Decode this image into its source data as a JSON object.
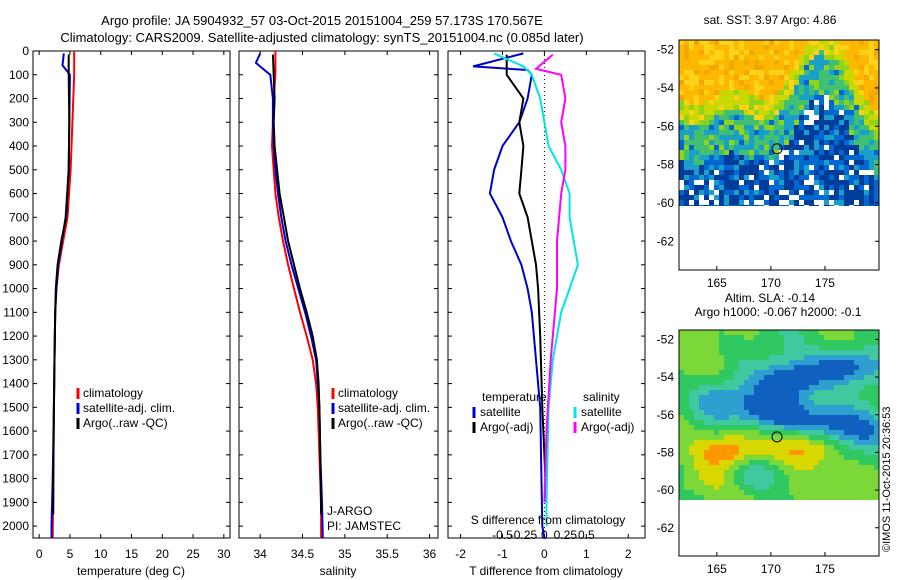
{
  "header": {
    "line1": "Argo profile: JA 5904932_57 03-Oct-2015 20151004_259 57.173S 170.567E",
    "line2": "Climatology: CARS2009. Satellite-adjusted climatology: synTS_20151004.nc (0.085d later)"
  },
  "watermark": "©IMOS 11-Oct-2015 20:36:53",
  "colors": {
    "climatology": "#ff0000",
    "satellite": "#0000cc",
    "argo": "#000000",
    "salinity_sat": "#00e5e5",
    "salinity_argo": "#ff00ff"
  },
  "chart_data": [
    {
      "id": "temperature",
      "type": "line",
      "xlabel": "temperature (deg C)",
      "xlim": [
        -1,
        31
      ],
      "xticks": [
        "0",
        "5",
        "10",
        "15",
        "20",
        "25",
        "30"
      ],
      "ylim": [
        2050,
        0
      ],
      "yticks": [
        "0",
        "100",
        "200",
        "300",
        "400",
        "500",
        "600",
        "700",
        "800",
        "900",
        "1000",
        "1100",
        "1200",
        "1300",
        "1400",
        "1500",
        "1600",
        "1700",
        "1800",
        "1900",
        "2000"
      ],
      "legend": [
        "climatology",
        "satellite-adj. clim.",
        "Argo(..raw -QC)"
      ],
      "series": [
        {
          "name": "climatology",
          "color": "#ff0000",
          "points": [
            [
              5.7,
              0
            ],
            [
              5.7,
              100
            ],
            [
              5.4,
              300
            ],
            [
              5.1,
              500
            ],
            [
              4.6,
              700
            ],
            [
              3.9,
              800
            ],
            [
              3.2,
              900
            ],
            [
              2.8,
              1000
            ],
            [
              2.6,
              1100
            ],
            [
              2.5,
              1300
            ],
            [
              2.4,
              1500
            ],
            [
              2.3,
              1800
            ],
            [
              2.2,
              2050
            ]
          ]
        },
        {
          "name": "satellite-adj. clim.",
          "color": "#0000cc",
          "points": [
            [
              4.0,
              10
            ],
            [
              3.8,
              60
            ],
            [
              4.4,
              80
            ],
            [
              5.0,
              100
            ],
            [
              4.9,
              300
            ],
            [
              4.8,
              500
            ],
            [
              4.3,
              700
            ],
            [
              3.7,
              800
            ],
            [
              3.1,
              900
            ],
            [
              2.8,
              1000
            ],
            [
              2.6,
              1100
            ],
            [
              2.5,
              1300
            ],
            [
              2.4,
              1500
            ],
            [
              2.2,
              1800
            ],
            [
              2.0,
              2000
            ],
            [
              2.0,
              2050
            ]
          ]
        },
        {
          "name": "Argo(..raw -QC)",
          "color": "#000000",
          "points": [
            [
              4.8,
              15
            ],
            [
              4.8,
              100
            ],
            [
              4.9,
              300
            ],
            [
              4.8,
              500
            ],
            [
              4.4,
              700
            ],
            [
              3.6,
              800
            ],
            [
              3.0,
              900
            ],
            [
              2.7,
              1000
            ],
            [
              2.6,
              1100
            ],
            [
              2.5,
              1300
            ],
            [
              2.4,
              1500
            ],
            [
              2.3,
              1800
            ],
            [
              2.3,
              1950
            ]
          ]
        }
      ]
    },
    {
      "id": "salinity",
      "type": "line",
      "xlabel": "salinity",
      "xlim": [
        33.75,
        36.1
      ],
      "xticks": [
        "34",
        "34.5",
        "35",
        "35.5",
        "36"
      ],
      "ylim": [
        2050,
        0
      ],
      "legend": [
        "climatology",
        "satellite-adj. clim.",
        "Argo(..raw -QC)"
      ],
      "annotations": [
        "J-ARGO",
        "PI: JAMSTEC"
      ],
      "series": [
        {
          "name": "climatology",
          "color": "#ff0000",
          "points": [
            [
              34.18,
              0
            ],
            [
              34.18,
              100
            ],
            [
              34.16,
              200
            ],
            [
              34.15,
              300
            ],
            [
              34.14,
              400
            ],
            [
              34.16,
              500
            ],
            [
              34.18,
              600
            ],
            [
              34.22,
              700
            ],
            [
              34.27,
              800
            ],
            [
              34.33,
              900
            ],
            [
              34.4,
              1000
            ],
            [
              34.47,
              1100
            ],
            [
              34.55,
              1200
            ],
            [
              34.62,
              1300
            ],
            [
              34.66,
              1400
            ],
            [
              34.68,
              1500
            ],
            [
              34.7,
              1700
            ],
            [
              34.72,
              1900
            ],
            [
              34.72,
              2050
            ]
          ]
        },
        {
          "name": "satellite-adj. clim.",
          "color": "#0000cc",
          "points": [
            [
              34.0,
              10
            ],
            [
              33.95,
              50
            ],
            [
              34.05,
              80
            ],
            [
              34.12,
              100
            ],
            [
              34.15,
              200
            ],
            [
              34.15,
              300
            ],
            [
              34.16,
              400
            ],
            [
              34.18,
              500
            ],
            [
              34.21,
              600
            ],
            [
              34.25,
              700
            ],
            [
              34.3,
              800
            ],
            [
              34.37,
              900
            ],
            [
              34.45,
              1000
            ],
            [
              34.53,
              1100
            ],
            [
              34.6,
              1200
            ],
            [
              34.66,
              1300
            ],
            [
              34.68,
              1400
            ],
            [
              34.7,
              1500
            ],
            [
              34.71,
              1700
            ],
            [
              34.73,
              1900
            ],
            [
              34.74,
              2050
            ]
          ]
        },
        {
          "name": "Argo(..raw -QC)",
          "color": "#000000",
          "points": [
            [
              34.15,
              15
            ],
            [
              34.16,
              100
            ],
            [
              34.17,
              200
            ],
            [
              34.16,
              300
            ],
            [
              34.17,
              400
            ],
            [
              34.2,
              500
            ],
            [
              34.23,
              600
            ],
            [
              34.28,
              700
            ],
            [
              34.33,
              800
            ],
            [
              34.4,
              900
            ],
            [
              34.47,
              1000
            ],
            [
              34.55,
              1100
            ],
            [
              34.62,
              1200
            ],
            [
              34.67,
              1300
            ],
            [
              34.69,
              1400
            ],
            [
              34.7,
              1500
            ],
            [
              34.71,
              1700
            ],
            [
              34.72,
              1950
            ]
          ]
        }
      ]
    },
    {
      "id": "differences",
      "type": "line",
      "xlabel": "T difference from climatology",
      "xlabel2": "S difference from climatology",
      "xlim": [
        -2.3,
        2.4
      ],
      "xticks": [
        "-2",
        "-1",
        "0",
        "1",
        "2"
      ],
      "xticks2": [
        "-0.5",
        "-0.25",
        "0",
        "0.25",
        "0.5"
      ],
      "ylim": [
        2050,
        0
      ],
      "legend": {
        "temperature_header": "temperature",
        "salinity_header": "salinity",
        "temperature": [
          "satellite",
          "Argo(-adj)"
        ],
        "salinity": [
          "satellite",
          "Argo(-adj)"
        ]
      },
      "series": [
        {
          "name": "temperature satellite",
          "color": "#0000cc",
          "points": [
            [
              -0.5,
              10
            ],
            [
              -1.7,
              65
            ],
            [
              -0.4,
              80
            ],
            [
              -0.3,
              100
            ],
            [
              -0.4,
              200
            ],
            [
              -0.6,
              300
            ],
            [
              -1.0,
              400
            ],
            [
              -1.2,
              500
            ],
            [
              -1.3,
              600
            ],
            [
              -1.0,
              700
            ],
            [
              -0.8,
              800
            ],
            [
              -0.55,
              900
            ],
            [
              -0.4,
              1000
            ],
            [
              -0.3,
              1100
            ],
            [
              -0.2,
              1300
            ],
            [
              -0.1,
              1500
            ],
            [
              -0.05,
              2000
            ],
            [
              0.0,
              2050
            ]
          ]
        },
        {
          "name": "temperature Argo(-adj)",
          "color": "#000000",
          "points": [
            [
              -0.9,
              15
            ],
            [
              -0.9,
              100
            ],
            [
              -0.5,
              200
            ],
            [
              -0.6,
              300
            ],
            [
              -0.5,
              400
            ],
            [
              -0.55,
              500
            ],
            [
              -0.6,
              600
            ],
            [
              -0.4,
              700
            ],
            [
              -0.3,
              800
            ],
            [
              -0.2,
              900
            ],
            [
              -0.15,
              1000
            ],
            [
              -0.1,
              1200
            ],
            [
              -0.05,
              1500
            ],
            [
              0.05,
              1900
            ]
          ]
        },
        {
          "name": "salinity satellite",
          "color": "#00e5e5",
          "points": [
            [
              -1.2,
              10
            ],
            [
              -0.5,
              65
            ],
            [
              -0.3,
              100
            ],
            [
              -0.1,
              200
            ],
            [
              0.0,
              300
            ],
            [
              0.1,
              400
            ],
            [
              0.4,
              500
            ],
            [
              0.6,
              600
            ],
            [
              0.6,
              700
            ],
            [
              0.7,
              800
            ],
            [
              0.8,
              900
            ],
            [
              0.6,
              1000
            ],
            [
              0.4,
              1100
            ],
            [
              0.2,
              1300
            ],
            [
              0.1,
              1500
            ],
            [
              0.05,
              1900
            ],
            [
              0.05,
              2000
            ]
          ]
        },
        {
          "name": "salinity Argo(-adj)",
          "color": "#ff00ff",
          "points": [
            [
              0.2,
              15
            ],
            [
              -0.2,
              75
            ],
            [
              0.4,
              100
            ],
            [
              0.5,
              200
            ],
            [
              0.4,
              300
            ],
            [
              0.5,
              400
            ],
            [
              0.5,
              500
            ],
            [
              0.4,
              600
            ],
            [
              0.3,
              800
            ],
            [
              0.3,
              1000
            ],
            [
              0.25,
              1100
            ],
            [
              0.15,
              1300
            ],
            [
              0.05,
              1600
            ],
            [
              0.0,
              1900
            ]
          ]
        }
      ]
    },
    {
      "id": "sst_map",
      "type": "heatmap",
      "title": "sat. SST: 3.97 Argo: 4.86",
      "xticks": [
        "165",
        "170",
        "175"
      ],
      "yticks": [
        "-52",
        "-54",
        "-56",
        "-58",
        "-60",
        "-62"
      ],
      "xlim": [
        161.5,
        180
      ],
      "ylim": [
        -63.5,
        -51.5
      ],
      "argo_position": [
        170.567,
        -57.173
      ]
    },
    {
      "id": "sla_map",
      "type": "heatmap",
      "title": "Altim. SLA: -0.14",
      "subtitle": "Argo h1000: -0.067 h2000: -0.1",
      "xticks": [
        "165",
        "170",
        "175"
      ],
      "yticks": [
        "-52",
        "-54",
        "-56",
        "-58",
        "-60",
        "-62"
      ],
      "xlim": [
        161.5,
        180
      ],
      "ylim": [
        -63.5,
        -51.5
      ],
      "argo_position": [
        170.567,
        -57.173
      ]
    }
  ]
}
